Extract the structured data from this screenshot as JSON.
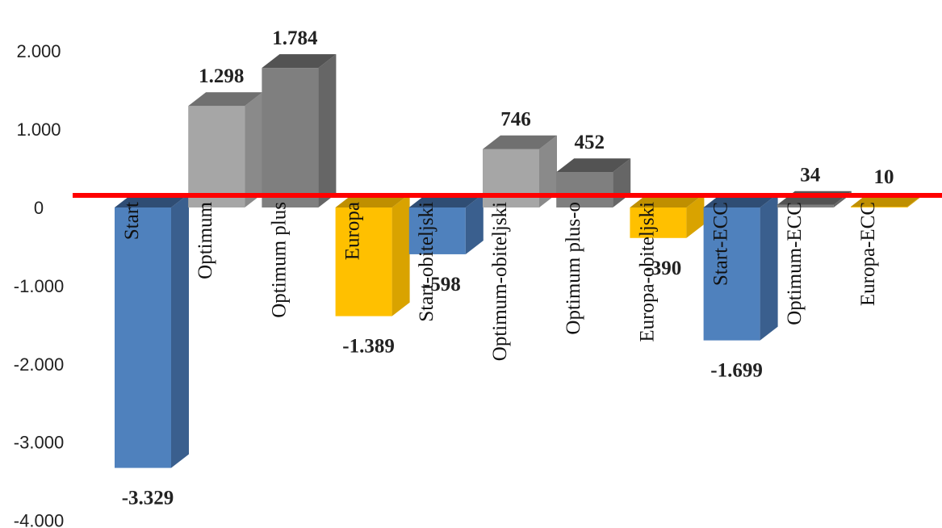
{
  "chart_data": {
    "type": "bar",
    "style": "3d-column",
    "categories": [
      "Start",
      "Optimum",
      "Optimum plus",
      "Europa",
      "Start-obiteljski",
      "Optimum-obiteljski",
      "Optimum plus-o",
      "Europa-obiteljski",
      "Start-ECC",
      "Optimum-ECC",
      "Europa-ECC"
    ],
    "values": [
      -3329,
      1298,
      1784,
      -1389,
      -598,
      746,
      452,
      -390,
      -1699,
      34,
      10
    ],
    "value_labels": [
      "-3.329",
      "1.298",
      "1.784",
      "-1.389",
      "-598",
      "746",
      "452",
      "-390",
      "-1.699",
      "34",
      "10"
    ],
    "series_colors": [
      "blue",
      "lightgray",
      "darkgray",
      "gold",
      "blue",
      "lightgray",
      "darkgray",
      "gold",
      "blue",
      "darkgray",
      "gold"
    ],
    "palette": {
      "blue": [
        "#4f81bd",
        "#3a5f8e",
        "#2f4d74"
      ],
      "lightgray": [
        "#a6a6a6",
        "#8a8a8a",
        "#707070"
      ],
      "darkgray": [
        "#7f7f7f",
        "#666666",
        "#535353"
      ],
      "gold": [
        "#ffc000",
        "#d9a300",
        "#bf8f00"
      ]
    },
    "zero_line_color": "#ff0000",
    "y_ticks": [
      2000,
      1000,
      0,
      -1000,
      -2000,
      -3000,
      -4000
    ],
    "y_tick_labels": [
      "2.000",
      "1.000",
      "0",
      "-1.000",
      "-2.000",
      "-3.000",
      "-4.000"
    ],
    "ylim": [
      -4000,
      2000
    ],
    "title": "",
    "xlabel": "",
    "ylabel": "",
    "legend": "none",
    "grid": false
  }
}
